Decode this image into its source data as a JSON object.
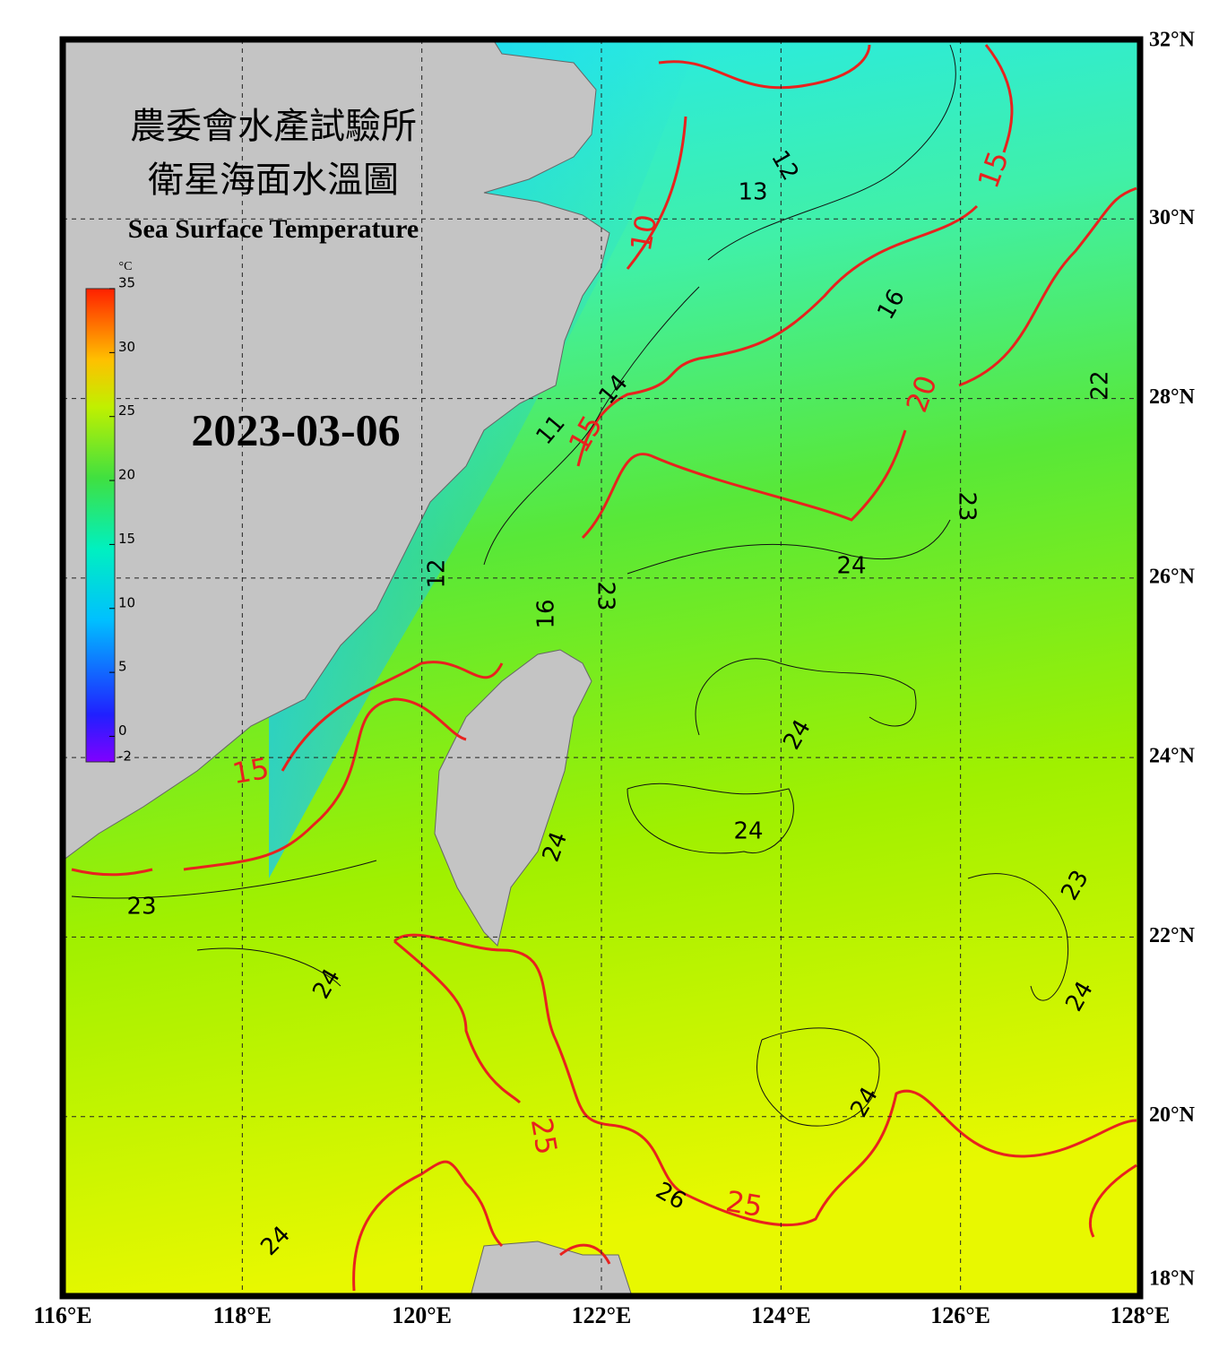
{
  "title_zh_line1": "農委會水產試驗所",
  "title_zh_line2": "衛星海面水溫圖",
  "title_en": "Sea Surface Temperature",
  "date": "2023-03-06",
  "colorbar": {
    "unit": "°C",
    "range": [
      -2,
      35
    ],
    "ticks": [
      -2,
      0,
      5,
      10,
      15,
      20,
      25,
      30,
      35
    ]
  },
  "x_axis": {
    "range": [
      116,
      128
    ],
    "ticks": [
      {
        "value": 116,
        "label": "116°E"
      },
      {
        "value": 118,
        "label": "118°E"
      },
      {
        "value": 120,
        "label": "120°E"
      },
      {
        "value": 122,
        "label": "122°E"
      },
      {
        "value": 124,
        "label": "124°E"
      },
      {
        "value": 126,
        "label": "126°E"
      },
      {
        "value": 128,
        "label": "128°E"
      }
    ]
  },
  "y_axis": {
    "range": [
      18,
      32
    ],
    "ticks": [
      {
        "value": 18,
        "label": "18°N"
      },
      {
        "value": 20,
        "label": "20°N"
      },
      {
        "value": 22,
        "label": "22°N"
      },
      {
        "value": 24,
        "label": "24°N"
      },
      {
        "value": 26,
        "label": "26°N"
      },
      {
        "value": 28,
        "label": "28°N"
      },
      {
        "value": 30,
        "label": "30°N"
      },
      {
        "value": 32,
        "label": "32°N"
      }
    ]
  },
  "contour_labels": [
    12,
    13,
    10,
    15,
    16,
    22,
    11,
    15,
    14,
    20,
    23,
    24,
    12,
    16,
    23,
    15,
    24,
    24,
    24,
    23,
    23,
    24,
    24,
    24,
    25,
    26,
    25,
    24
  ]
}
